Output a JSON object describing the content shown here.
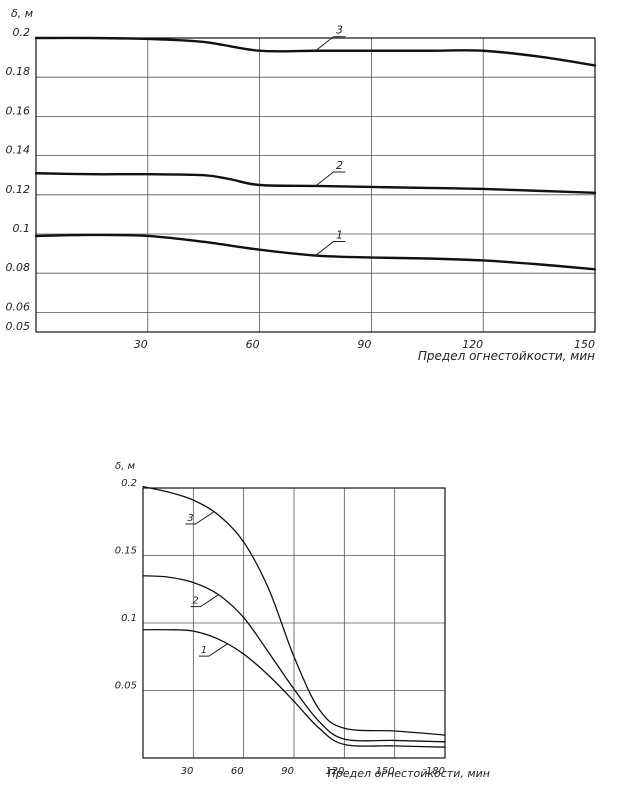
{
  "chart_data": [
    {
      "type": "line",
      "ylabel": "δ, м",
      "xlabel": "Предел огнестойкости, мин",
      "xlim": [
        0,
        150
      ],
      "ylim": [
        0.05,
        0.2
      ],
      "x_ticks": [
        30,
        60,
        90,
        120,
        150
      ],
      "y_ticks": [
        0.05,
        0.06,
        0.08,
        0.1,
        0.12,
        0.14,
        0.16,
        0.18,
        0.2
      ],
      "x_tick_labels": [
        "30",
        "60",
        "90",
        "120",
        "150"
      ],
      "y_tick_labels": [
        "0.05",
        "0.06",
        "0.08",
        "0.1",
        "0.12",
        "0.14",
        "0.16",
        "0.18",
        "0.2"
      ],
      "grid": true,
      "series": [
        {
          "name": "1",
          "x": [
            0,
            15,
            30,
            45,
            60,
            75,
            90,
            105,
            120,
            135,
            150
          ],
          "y": [
            0.099,
            0.0995,
            0.099,
            0.096,
            0.092,
            0.089,
            0.088,
            0.0875,
            0.0865,
            0.0845,
            0.082
          ]
        },
        {
          "name": "2",
          "x": [
            0,
            15,
            30,
            45,
            52,
            60,
            75,
            90,
            105,
            120,
            135,
            150
          ],
          "y": [
            0.131,
            0.1305,
            0.1305,
            0.13,
            0.128,
            0.125,
            0.1245,
            0.124,
            0.1235,
            0.123,
            0.122,
            0.121
          ]
        },
        {
          "name": "3",
          "x": [
            0,
            15,
            30,
            45,
            60,
            75,
            90,
            105,
            120,
            135,
            150
          ],
          "y": [
            0.2,
            0.2,
            0.1995,
            0.198,
            0.1935,
            0.1935,
            0.1935,
            0.1935,
            0.1935,
            0.1905,
            0.186
          ]
        }
      ],
      "labels": [
        {
          "text": "1",
          "series": 0,
          "at_x": 75
        },
        {
          "text": "2",
          "series": 1,
          "at_x": 75
        },
        {
          "text": "3",
          "series": 2,
          "at_x": 75
        }
      ]
    },
    {
      "type": "line",
      "ylabel": "δ, м",
      "xlabel": "Предел огнестойкости, мин",
      "xlim": [
        0,
        180
      ],
      "ylim": [
        0,
        0.2
      ],
      "x_ticks": [
        30,
        60,
        90,
        120,
        150,
        180
      ],
      "y_ticks": [
        0.05,
        0.1,
        0.15,
        0.2
      ],
      "x_tick_labels": [
        "30",
        "60",
        "90",
        "120",
        "150",
        "180"
      ],
      "y_tick_labels": [
        "0.05",
        "0.1",
        "0.15",
        "0.2"
      ],
      "grid": true,
      "series": [
        {
          "name": "1",
          "x": [
            0,
            15,
            30,
            45,
            60,
            75,
            90,
            105,
            120,
            150,
            180
          ],
          "y": [
            0.095,
            0.095,
            0.094,
            0.088,
            0.077,
            0.061,
            0.042,
            0.022,
            0.01,
            0.009,
            0.008
          ]
        },
        {
          "name": "2",
          "x": [
            0,
            15,
            30,
            45,
            60,
            75,
            90,
            105,
            120,
            150,
            180
          ],
          "y": [
            0.135,
            0.134,
            0.13,
            0.121,
            0.104,
            0.078,
            0.051,
            0.027,
            0.014,
            0.013,
            0.012
          ]
        },
        {
          "name": "3",
          "x": [
            0,
            15,
            30,
            45,
            60,
            75,
            90,
            105,
            120,
            150,
            180
          ],
          "y": [
            0.201,
            0.197,
            0.191,
            0.18,
            0.16,
            0.125,
            0.075,
            0.036,
            0.022,
            0.02,
            0.017
          ]
        }
      ],
      "labels": [
        {
          "text": "1",
          "series": 0,
          "at_x": 50
        },
        {
          "text": "2",
          "series": 1,
          "at_x": 45
        },
        {
          "text": "3",
          "series": 2,
          "at_x": 42
        }
      ]
    }
  ]
}
